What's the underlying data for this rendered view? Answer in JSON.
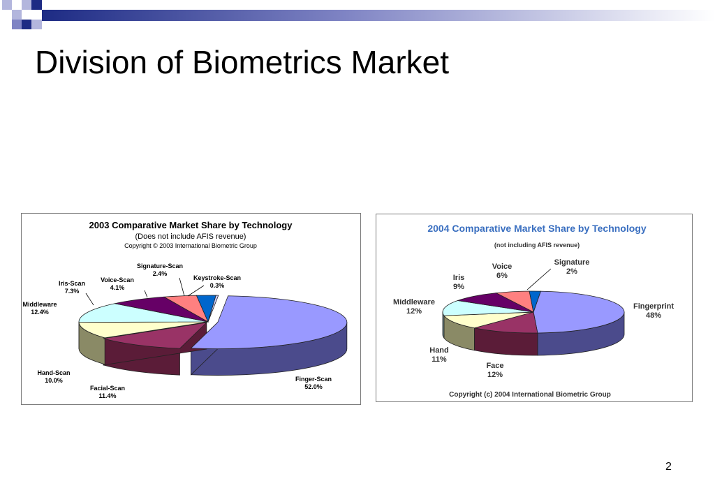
{
  "slide": {
    "title": "Division of Biometrics Market",
    "page_number": "2"
  },
  "colors": {
    "deco_navy": "#1d2b84",
    "deco_purple": "#7f84c4",
    "deco_light": "#b3b6dd"
  },
  "chart_data": [
    {
      "type": "pie",
      "title": "2003 Comparative Market Share by Technology",
      "subtitle": "(Does not include AFIS revenue)",
      "note": "Copyright © 2003 International Biometric Group",
      "unit": "%",
      "slices": [
        {
          "label": "Finger-Scan",
          "value_text": "52.0%",
          "value": 52.0,
          "color": "#9999ff",
          "side": "#4b4b8c"
        },
        {
          "label": "Facial-Scan",
          "value_text": "11.4%",
          "value": 11.4,
          "color": "#993366",
          "side": "#5b1c38"
        },
        {
          "label": "Hand-Scan",
          "value_text": "10.0%",
          "value": 10.0,
          "color": "#ffffcc",
          "side": "#8a8a66"
        },
        {
          "label": "Middleware",
          "value_text": "12.4%",
          "value": 12.4,
          "color": "#ccffff",
          "side": "#6e8e8e"
        },
        {
          "label": "Iris-Scan",
          "value_text": "7.3%",
          "value": 7.3,
          "color": "#660066",
          "side": "#3a003a"
        },
        {
          "label": "Voice-Scan",
          "value_text": "4.1%",
          "value": 4.1,
          "color": "#ff8080",
          "side": "#a04848"
        },
        {
          "label": "Signature-Scan",
          "value_text": "2.4%",
          "value": 2.4,
          "color": "#0066cc",
          "side": "#003d7a"
        },
        {
          "label": "Keystroke-Scan",
          "value_text": "0.3%",
          "value": 0.3,
          "color": "#ccccff",
          "side": "#7a7aa0"
        }
      ]
    },
    {
      "type": "pie",
      "title": "2004 Comparative Market Share by Technology",
      "subtitle": "(not including AFIS revenue)",
      "note": "Copyright (c) 2004 International Biometric Group",
      "unit": "%",
      "slices": [
        {
          "label": "Fingerprint",
          "value_text": "48%",
          "value": 48,
          "color": "#9999ff",
          "side": "#4b4b8c"
        },
        {
          "label": "Face",
          "value_text": "12%",
          "value": 12,
          "color": "#993366",
          "side": "#5b1c38"
        },
        {
          "label": "Hand",
          "value_text": "11%",
          "value": 11,
          "color": "#ffffcc",
          "side": "#8a8a66"
        },
        {
          "label": "Middleware",
          "value_text": "12%",
          "value": 12,
          "color": "#ccffff",
          "side": "#6e8e8e"
        },
        {
          "label": "Iris",
          "value_text": "9%",
          "value": 9,
          "color": "#660066",
          "side": "#3a003a"
        },
        {
          "label": "Voice",
          "value_text": "6%",
          "value": 6,
          "color": "#ff8080",
          "side": "#a04848"
        },
        {
          "label": "Signature",
          "value_text": "2%",
          "value": 2,
          "color": "#0066cc",
          "side": "#003d7a"
        }
      ]
    }
  ]
}
